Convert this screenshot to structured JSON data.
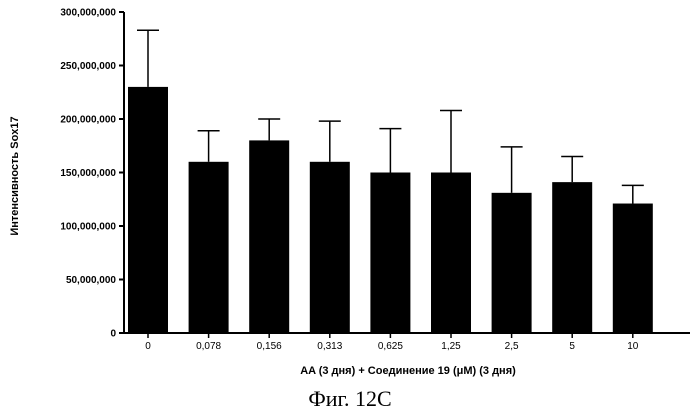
{
  "chart_data": {
    "type": "bar",
    "categories": [
      "0",
      "0,078",
      "0,156",
      "0,313",
      "0,625",
      "1,25",
      "2,5",
      "5",
      "10"
    ],
    "values": [
      230000000,
      160000000,
      180000000,
      160000000,
      150000000,
      150000000,
      131000000,
      141000000,
      121000000
    ],
    "error_upper": [
      283000000,
      189000000,
      200000000,
      198000000,
      191000000,
      208000000,
      174000000,
      165000000,
      138000000
    ],
    "ylim": [
      0,
      300000000
    ],
    "yticks": [
      0,
      50000000,
      100000000,
      150000000,
      200000000,
      250000000,
      300000000
    ],
    "ytick_labels": [
      "0",
      "50,000,000",
      "100,000,000",
      "150,000,000",
      "200,000,000",
      "250,000,000",
      "300,000,000"
    ],
    "xlabel": "AA (3 дня) + Соединение 19 (μM) (3 дня)",
    "ylabel": "Интенсивность Sox17",
    "bar_color": "#000000",
    "grid": false
  },
  "caption": "Фиг. 12C"
}
